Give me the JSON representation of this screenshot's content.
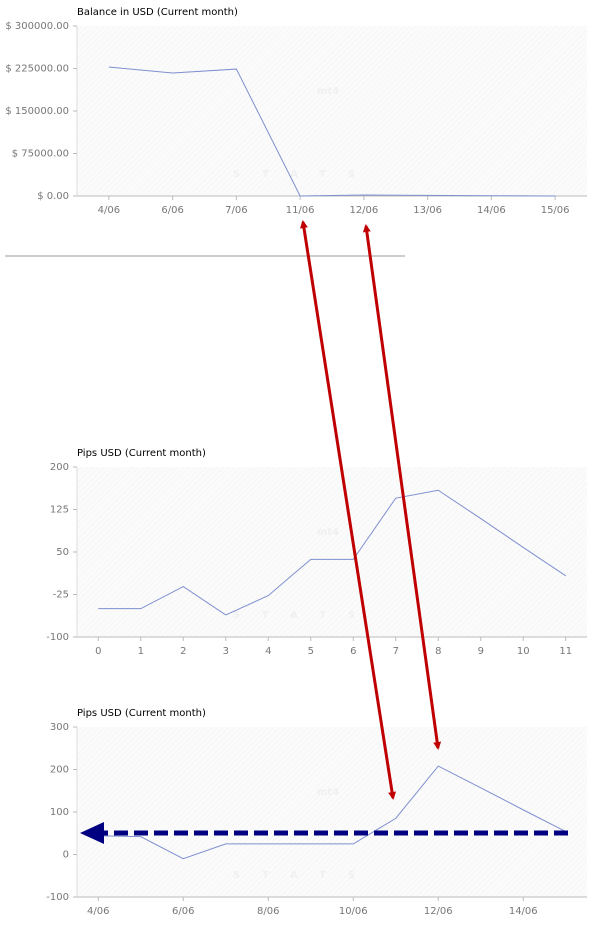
{
  "chart_data": [
    {
      "type": "line",
      "title": "Balance in USD (Current month)",
      "watermark": "mt4",
      "watermark_sub": "STATS",
      "categories": [
        "4/06",
        "6/06",
        "7/06",
        "11/06",
        "12/06",
        "13/06",
        "14/06",
        "15/06"
      ],
      "series": [
        {
          "name": "Balance",
          "color": "#7f8fd0",
          "values": [
            227600,
            217000,
            224000,
            0,
            1800,
            1000,
            500,
            0
          ]
        }
      ],
      "ylim": [
        0,
        300000
      ],
      "yticks": [
        {
          "value": 0,
          "label": "$ 0.00"
        },
        {
          "value": 75000,
          "label": "$ 75000.00"
        },
        {
          "value": 150000,
          "label": "$ 150000.00"
        },
        {
          "value": 225000,
          "label": "$ 225000.00"
        },
        {
          "value": 300000,
          "label": "$ 300000.00"
        }
      ],
      "grid": false
    },
    {
      "type": "line",
      "title": "Pips USD (Current month)",
      "watermark": "mt4",
      "watermark_sub": "STATS",
      "x": [
        0,
        1,
        2,
        3,
        4,
        5,
        6,
        7,
        8,
        9,
        10,
        11
      ],
      "series": [
        {
          "name": "Pips",
          "color": "#7f8fd0",
          "values": [
            -50,
            -50,
            -11,
            -61,
            -27,
            37,
            37,
            145,
            159,
            109,
            58,
            8
          ]
        }
      ],
      "xlim": [
        -0.5,
        11.5
      ],
      "xticks": [
        0,
        1,
        2,
        3,
        4,
        5,
        6,
        7,
        8,
        9,
        10,
        11
      ],
      "ylim": [
        -100,
        200
      ],
      "yticks": [
        -100,
        -25,
        50,
        125,
        200
      ],
      "grid": false
    },
    {
      "type": "line",
      "title": "Pips USD (Current month)",
      "watermark": "mt4",
      "watermark_sub": "STATS",
      "categories": [
        "4/06",
        null,
        "6/06",
        null,
        "8/06",
        null,
        "10/06",
        null,
        "12/06",
        null,
        "14/06",
        null
      ],
      "series": [
        {
          "name": "Pips",
          "color": "#7f8fd0",
          "values": [
            44,
            42,
            -10,
            25,
            25,
            25,
            25,
            85,
            208,
            157,
            105,
            54
          ]
        }
      ],
      "ylim": [
        -100,
        300
      ],
      "yticks": [
        -100,
        0,
        100,
        200,
        300
      ],
      "grid": false
    }
  ]
}
